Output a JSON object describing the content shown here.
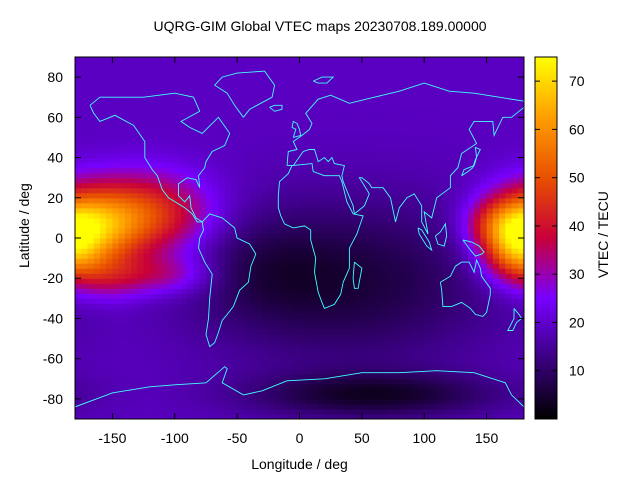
{
  "chart_data": {
    "type": "heatmap",
    "title": "UQRG-GIM Global VTEC maps 20230708.189.00000",
    "xlabel": "Longitude / deg",
    "ylabel": "Latitude / deg",
    "colorbar_label": "VTEC / TECU",
    "xlim": [
      -180,
      180
    ],
    "ylim": [
      -90,
      90
    ],
    "x_ticks": [
      -150,
      -100,
      -50,
      0,
      50,
      100,
      150
    ],
    "y_ticks": [
      -80,
      -60,
      -40,
      -20,
      0,
      20,
      40,
      60,
      80
    ],
    "colorbar_range": [
      0,
      75
    ],
    "colorbar_ticks": [
      10,
      20,
      30,
      40,
      50,
      60,
      70
    ],
    "colormap": [
      "#000000",
      "#3a0080",
      "#7800ff",
      "#c8003a",
      "#e85000",
      "#ff9e00",
      "#ffff00"
    ],
    "coastline_color": "#40ffff",
    "features": [
      {
        "lon": -170,
        "lat": 5,
        "sigma_lon": 28,
        "sigma_lat": 14,
        "vtec": 40
      },
      {
        "lon": -120,
        "lat": 12,
        "sigma_lon": 35,
        "sigma_lat": 14,
        "vtec": 27
      },
      {
        "lon": -180,
        "lat": -12,
        "sigma_lon": 18,
        "sigma_lat": 8,
        "vtec": 8
      },
      {
        "lon": -155,
        "lat": -20,
        "sigma_lon": 20,
        "sigma_lat": 8,
        "vtec": 10
      },
      {
        "lon": -110,
        "lat": -18,
        "sigma_lon": 28,
        "sigma_lat": 7,
        "vtec": 14
      },
      {
        "lon": 170,
        "lat": 0,
        "sigma_lon": 18,
        "sigma_lat": 13,
        "vtec": 25
      },
      {
        "lon": 150,
        "lat": 8,
        "sigma_lon": 15,
        "sigma_lat": 8,
        "vtec": 8
      },
      {
        "lon": 40,
        "lat": -22,
        "sigma_lon": 85,
        "sigma_lat": 30,
        "vtec": -13
      },
      {
        "lon": 60,
        "lat": -78,
        "sigma_lon": 70,
        "sigma_lat": 8,
        "vtec": -14
      },
      {
        "lon": -30,
        "lat": -15,
        "sigma_lon": 40,
        "sigma_lat": 18,
        "vtec": -5
      }
    ],
    "vtec_background": 19
  }
}
